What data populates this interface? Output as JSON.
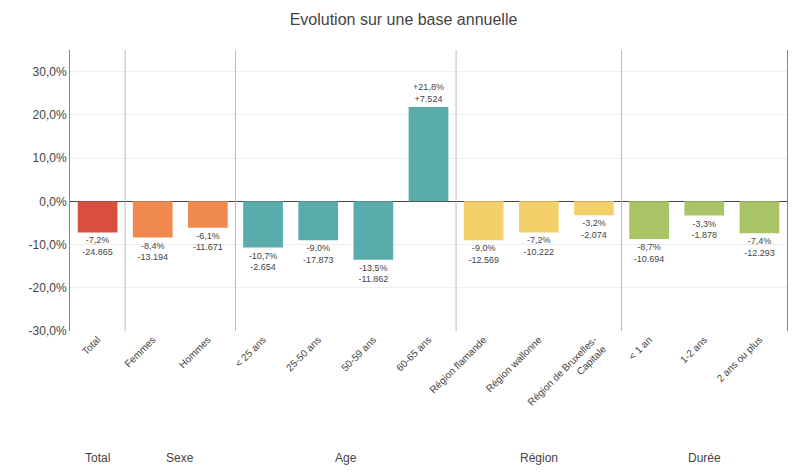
{
  "chart_data": {
    "type": "bar",
    "title": "Evolution sur une base annuelle",
    "categories": [
      "Total",
      "Femmes",
      "Hommes",
      "< 25 ans",
      "25-50 ans",
      "50-59 ans",
      "60-65 ans",
      "Région flamande",
      "Région wallonne",
      "Région de Bruxelles-\nCapitale",
      "< 1 an",
      "1-2 ans",
      "2 ans ou plus"
    ],
    "groups": [
      "Total",
      "Sexe",
      "Sexe",
      "Age",
      "Age",
      "Age",
      "Age",
      "Région",
      "Région",
      "Région",
      "Durée",
      "Durée",
      "Durée"
    ],
    "values": [
      -7.2,
      -8.4,
      -6.1,
      -10.7,
      -9.0,
      -13.5,
      21.8,
      -9.0,
      -7.2,
      -3.2,
      -8.7,
      -3.3,
      -7.4
    ],
    "value_labels": [
      "-7,2%",
      "-8,4%",
      "-6,1%",
      "-10,7%",
      "-9,0%",
      "-13,5%",
      "+21,8%",
      "-9,0%",
      "-7,2%",
      "-3,2%",
      "-8,7%",
      "-3,3%",
      "-7,4%"
    ],
    "counts": [
      -24865,
      -13194,
      -11671,
      -2654,
      -17873,
      -11862,
      7524,
      -12569,
      -10222,
      -2074,
      -10694,
      -1878,
      -12293
    ],
    "count_labels": [
      "-24.865",
      "-13.194",
      "-11.671",
      "-2.654",
      "-17.873",
      "-11.862",
      "+7.524",
      "-12.569",
      "-10.222",
      "-2.074",
      "-10.694",
      "-1.878",
      "-12.293"
    ],
    "colors": [
      "#d94f3d",
      "#f0894e",
      "#f0894e",
      "#5aacac",
      "#5aacac",
      "#5aacac",
      "#5aacac",
      "#f5d06a",
      "#f5d06a",
      "#f5d06a",
      "#a8c464",
      "#a8c464",
      "#a8c464"
    ],
    "ylim": [
      -30,
      35
    ],
    "yticks": [
      {
        "value": -30,
        "label": "-30,0%"
      },
      {
        "value": -20,
        "label": "-20,0%"
      },
      {
        "value": -10,
        "label": "-10,0%"
      },
      {
        "value": 0,
        "label": "0,0%"
      },
      {
        "value": 10,
        "label": "10,0%"
      },
      {
        "value": 20,
        "label": "20,0%"
      },
      {
        "value": 30,
        "label": "30,0%"
      }
    ],
    "grid": true,
    "data_labels": true
  }
}
